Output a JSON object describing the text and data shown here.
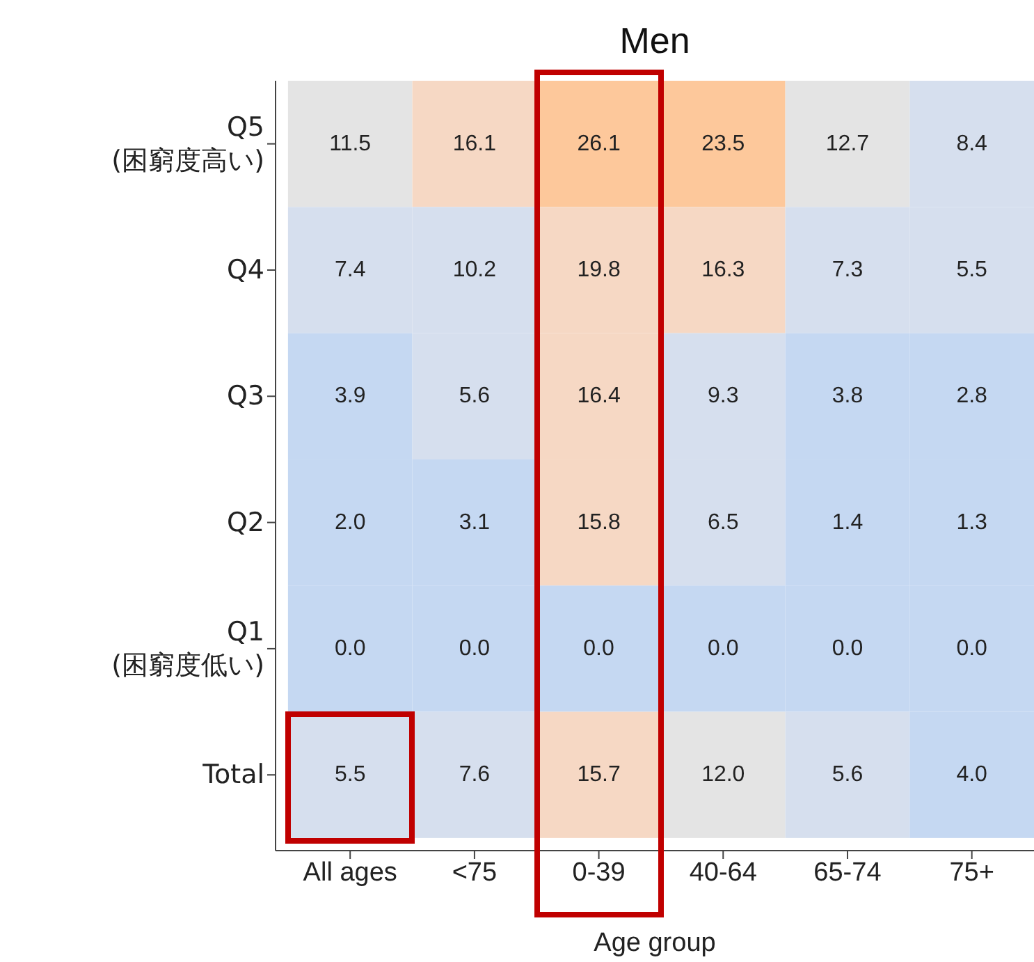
{
  "chart_data": {
    "type": "heatmap",
    "title": "Men",
    "xlabel": "Age group",
    "categories": [
      "All ages",
      "<75",
      "0-39",
      "40-64",
      "65-74",
      "75+"
    ],
    "y_categories": [
      "Q5\n(困窮度高い)",
      "Q4",
      "Q3",
      "Q2",
      "Q1\n(困窮度低い)",
      "Total"
    ],
    "cells": [
      [
        11.5,
        16.1,
        26.1,
        23.5,
        12.7,
        8.4
      ],
      [
        7.4,
        10.2,
        19.8,
        16.3,
        7.3,
        5.5
      ],
      [
        3.9,
        5.6,
        16.4,
        9.3,
        3.8,
        2.8
      ],
      [
        2.0,
        3.1,
        15.8,
        6.5,
        1.4,
        1.3
      ],
      [
        0.0,
        0.0,
        0.0,
        0.0,
        0.0,
        0.0
      ],
      [
        5.5,
        7.6,
        15.7,
        12.0,
        5.6,
        4.0
      ]
    ],
    "cell_labels": [
      [
        "11.5",
        "16.1",
        "26.1",
        "23.5",
        "12.7",
        "8.4"
      ],
      [
        "7.4",
        "10.2",
        "19.8",
        "16.3",
        "7.3",
        "5.5"
      ],
      [
        "3.9",
        "5.6",
        "16.4",
        "9.3",
        "3.8",
        "2.8"
      ],
      [
        "2.0",
        "3.1",
        "15.8",
        "6.5",
        "1.4",
        "1.3"
      ],
      [
        "0.0",
        "0.0",
        "0.0",
        "0.0",
        "0.0",
        "0.0"
      ],
      [
        "5.5",
        "7.6",
        "15.7",
        "12.0",
        "5.6",
        "4.0"
      ]
    ]
  }
}
